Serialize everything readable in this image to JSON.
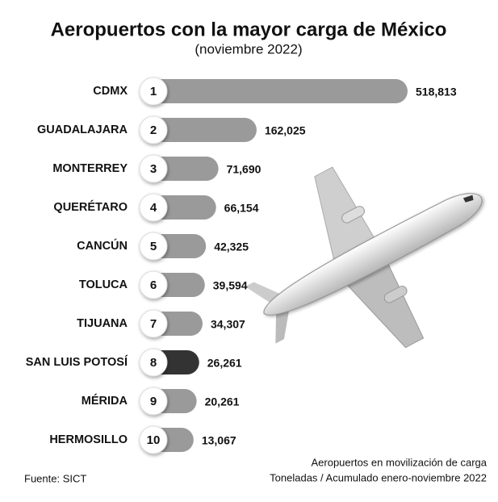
{
  "chart_data": {
    "type": "bar",
    "orientation": "horizontal",
    "title": "Aeropuertos con la mayor carga de México",
    "subtitle": "(noviembre 2022)",
    "categories": [
      "CDMX",
      "GUADALAJARA",
      "MONTERREY",
      "QUERÉTARO",
      "CANCÚN",
      "TOLUCA",
      "TIJUANA",
      "SAN LUIS POTOSÍ",
      "MÉRIDA",
      "HERMOSILLO"
    ],
    "ranks": [
      1,
      2,
      3,
      4,
      5,
      6,
      7,
      8,
      9,
      10
    ],
    "values": [
      518813,
      162025,
      71690,
      66154,
      42325,
      39594,
      34307,
      26261,
      20261,
      13067
    ],
    "value_labels": [
      "518,813",
      "162,025",
      "71,690",
      "66,154",
      "42,325",
      "39,594",
      "34,307",
      "26,261",
      "20,261",
      "13,067"
    ],
    "colors": [
      "#9a9a9a",
      "#9a9a9a",
      "#9a9a9a",
      "#9a9a9a",
      "#9a9a9a",
      "#9a9a9a",
      "#9a9a9a",
      "#333333",
      "#9a9a9a",
      "#9a9a9a"
    ],
    "source": "Fuente: SICT",
    "note": [
      "Aeropuertos en movilización de carga",
      "Toneladas / Acumulado enero-noviembre 2022"
    ]
  }
}
